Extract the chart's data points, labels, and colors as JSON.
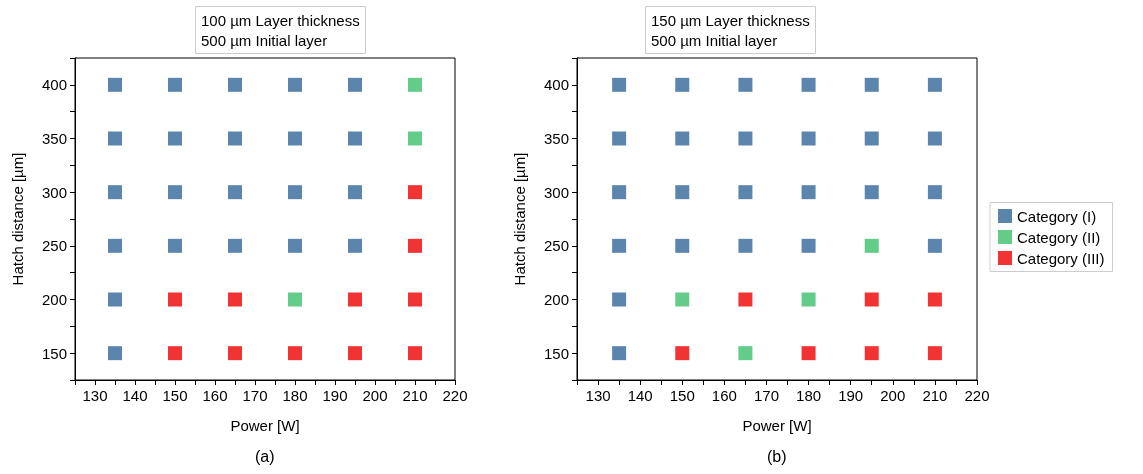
{
  "chart_data": [
    {
      "type": "scatter",
      "title": "100 µm Layer thickness\n500 µm Initial layer",
      "xlabel": "Power [W]",
      "ylabel": "Hatch distance [µm]",
      "annotations": [
        "(a)"
      ],
      "marker": "square",
      "legend": false,
      "grid": false,
      "xlim": [
        125,
        220
      ],
      "xticks": [
        {
          "value": 125,
          "label": null
        },
        130,
        {
          "value": 135,
          "label": null
        },
        140,
        {
          "value": 145,
          "label": null
        },
        150,
        {
          "value": 155,
          "label": null
        },
        160,
        {
          "value": 165,
          "label": null
        },
        170,
        {
          "value": 175,
          "label": null
        },
        180,
        {
          "value": 185,
          "label": null
        },
        190,
        {
          "value": 195,
          "label": null
        },
        200,
        {
          "value": 205,
          "label": null
        },
        210,
        {
          "value": 215,
          "label": null
        },
        220
      ],
      "ylim": [
        125,
        425
      ],
      "yticks": [
        {
          "value": 125,
          "label": null
        },
        150,
        {
          "value": 175,
          "label": null
        },
        200,
        {
          "value": 225,
          "label": null
        },
        250,
        {
          "value": 275,
          "label": null
        },
        300,
        {
          "value": 325,
          "label": null
        },
        350,
        {
          "value": 375,
          "label": null
        },
        400,
        {
          "value": 425,
          "label": null
        }
      ],
      "series": [
        {
          "color": "#336699",
          "x": [
            135,
            150,
            165,
            180,
            195,
            135,
            150,
            165,
            180,
            195,
            135,
            150,
            165,
            180,
            195,
            135,
            150,
            165,
            180,
            195,
            135,
            135
          ],
          "values": [
            400,
            400,
            400,
            400,
            400,
            350,
            350,
            350,
            350,
            350,
            300,
            300,
            300,
            300,
            300,
            250,
            250,
            250,
            250,
            250,
            200,
            150
          ]
        },
        {
          "color": "#3cbf6c",
          "x": [
            210,
            210,
            180
          ],
          "values": [
            400,
            350,
            200
          ]
        },
        {
          "color": "#ee0000",
          "x": [
            210,
            210,
            150,
            165,
            195,
            210,
            150,
            165,
            180,
            195,
            210
          ],
          "values": [
            300,
            250,
            200,
            200,
            200,
            200,
            150,
            150,
            150,
            150,
            150
          ]
        }
      ]
    },
    {
      "type": "scatter",
      "title": "150 µm Layer thickness\n500 µm Initial layer",
      "xlabel": "Power [W]",
      "ylabel": "Hatch distance [µm]",
      "annotations": [
        "(b)"
      ],
      "marker": "square",
      "legend": "right",
      "grid": false,
      "xlim": [
        125,
        220
      ],
      "xticks": [
        {
          "value": 125,
          "label": null
        },
        130,
        {
          "value": 135,
          "label": null
        },
        140,
        {
          "value": 145,
          "label": null
        },
        150,
        {
          "value": 155,
          "label": null
        },
        160,
        {
          "value": 165,
          "label": null
        },
        170,
        {
          "value": 175,
          "label": null
        },
        180,
        {
          "value": 185,
          "label": null
        },
        190,
        {
          "value": 195,
          "label": null
        },
        200,
        {
          "value": 205,
          "label": null
        },
        210,
        {
          "value": 215,
          "label": null
        },
        220
      ],
      "ylim": [
        125,
        425
      ],
      "yticks": [
        {
          "value": 125,
          "label": null
        },
        150,
        {
          "value": 175,
          "label": null
        },
        200,
        {
          "value": 225,
          "label": null
        },
        250,
        {
          "value": 275,
          "label": null
        },
        300,
        {
          "value": 325,
          "label": null
        },
        350,
        {
          "value": 375,
          "label": null
        },
        400,
        {
          "value": 425,
          "label": null
        }
      ],
      "series": [
        {
          "name": "Category (I)",
          "color": "#336699",
          "x": [
            135,
            150,
            165,
            180,
            195,
            210,
            135,
            150,
            165,
            180,
            195,
            210,
            135,
            150,
            165,
            180,
            195,
            210,
            135,
            150,
            165,
            180,
            210,
            135,
            135
          ],
          "values": [
            400,
            400,
            400,
            400,
            400,
            400,
            350,
            350,
            350,
            350,
            350,
            350,
            300,
            300,
            300,
            300,
            300,
            300,
            250,
            250,
            250,
            250,
            250,
            200,
            150
          ]
        },
        {
          "name": "Category (II)",
          "color": "#3cbf6c",
          "x": [
            195,
            150,
            180,
            165
          ],
          "values": [
            250,
            200,
            200,
            150
          ]
        },
        {
          "name": "Category (III)",
          "color": "#ee0000",
          "x": [
            165,
            195,
            210,
            150,
            180,
            195,
            210
          ],
          "values": [
            200,
            200,
            200,
            150,
            150,
            150,
            150
          ]
        }
      ]
    }
  ]
}
